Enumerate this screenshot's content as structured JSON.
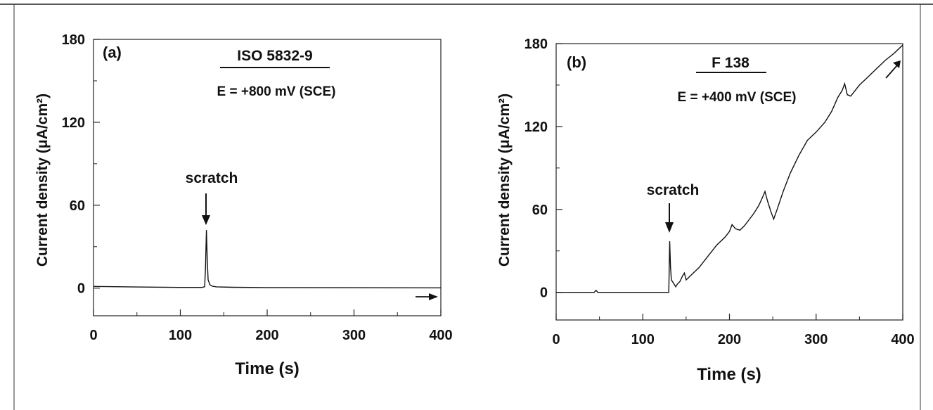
{
  "chart_data": [
    {
      "type": "line",
      "panel_label": "(a)",
      "title": "ISO 5832-9",
      "subtitle": "E = +800 mV (SCE)",
      "xlabel": "Time (s)",
      "ylabel": "Current density (μA/cm²)",
      "xlim": [
        0,
        400
      ],
      "ylim": [
        -20,
        180
      ],
      "x_ticks": [
        0,
        100,
        200,
        300,
        400
      ],
      "y_ticks": [
        0,
        60,
        120,
        180
      ],
      "annotation": "scratch",
      "annotation_x": 130,
      "series": [
        {
          "x": [
            0,
            50,
            100,
            125,
            128,
            129,
            130,
            131,
            132,
            134,
            137,
            142,
            160,
            200,
            300,
            400
          ],
          "y": [
            1.2,
            0.8,
            0.5,
            0.5,
            1,
            15,
            42,
            20,
            6,
            2.5,
            1.3,
            0.9,
            0.6,
            0.4,
            0.3,
            0.2
          ]
        }
      ]
    },
    {
      "type": "line",
      "panel_label": "(b)",
      "title": "F 138",
      "subtitle": "E = +400 mV (SCE)",
      "xlabel": "Time (s)",
      "ylabel": "Current density (μA/cm²)",
      "xlim": [
        0,
        400
      ],
      "ylim": [
        -20,
        180
      ],
      "x_ticks": [
        0,
        100,
        200,
        300,
        400
      ],
      "y_ticks": [
        0,
        60,
        120,
        180
      ],
      "annotation": "scratch",
      "annotation_x": 131,
      "series": [
        {
          "x": [
            0,
            44,
            46,
            48,
            100,
            130,
            131,
            132,
            133,
            135,
            138,
            140,
            143,
            146,
            148,
            150,
            155,
            165,
            175,
            185,
            195,
            200,
            203,
            207,
            212,
            217,
            222,
            228,
            234,
            239,
            241,
            244,
            248,
            251,
            255,
            262,
            270,
            280,
            290,
            300,
            310,
            318,
            325,
            330,
            333,
            336,
            340,
            345,
            350,
            360,
            370,
            380,
            390,
            400
          ],
          "y": [
            0,
            0,
            1.5,
            0,
            0,
            0,
            37,
            18,
            9,
            7,
            4,
            6,
            8,
            12,
            14,
            9,
            12,
            18,
            26,
            34,
            40,
            44,
            49,
            46,
            45,
            48,
            52,
            57,
            63,
            70,
            73,
            66,
            58,
            53,
            60,
            73,
            86,
            99,
            110,
            116,
            123,
            131,
            141,
            146,
            151,
            143,
            142,
            146,
            150,
            156,
            162,
            168,
            173,
            179
          ]
        }
      ]
    }
  ]
}
